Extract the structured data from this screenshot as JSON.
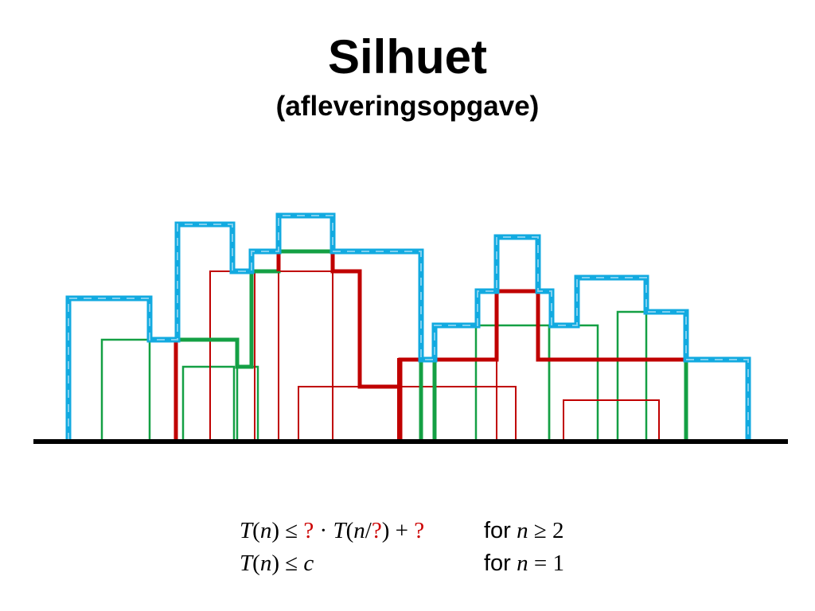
{
  "title": "Silhuet",
  "subtitle": "(afleveringsopgave)",
  "colors": {
    "silhouette": "#12aae0",
    "silhouette_dash": "#7fd0f0",
    "green": "#14a044",
    "red": "#c00000",
    "ground": "#000000",
    "unknown": "#cc0000"
  },
  "recurrence": {
    "line1": {
      "T": "T",
      "lp": "(",
      "n": "n",
      "rp": ")",
      "le": " ≤ ",
      "q1": "?",
      "dot": " · ",
      "T2": "T",
      "lp2": "(",
      "n2": "n",
      "slash": "/",
      "q2": "?",
      "rp2": ")",
      "plus": " + ",
      "q3": "?",
      "for": "for",
      "cond_n": "n",
      "cond_op": " ≥ 2"
    },
    "line2": {
      "T": "T",
      "lp": "(",
      "n": "n",
      "rp": ")",
      "le": " ≤ ",
      "c": "c",
      "for": "for",
      "cond_n": "n",
      "cond_op": " = 1"
    }
  }
}
